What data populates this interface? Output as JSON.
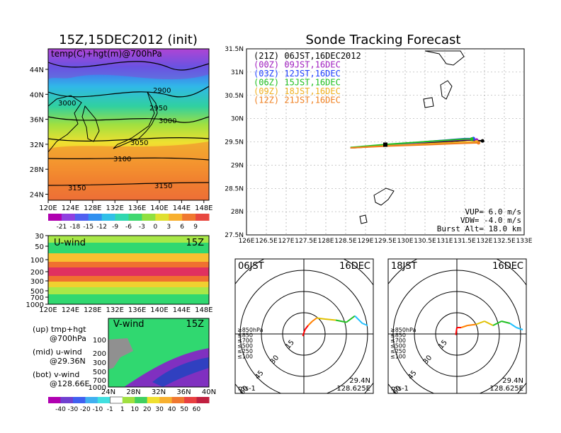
{
  "page_title": "Sonde Tracking Forecast",
  "left_title": "15Z,15DEC2012 (init)",
  "colors": {
    "fc_21z": "#000000",
    "fc_00z": "#a020c0",
    "fc_03z": "#2040ff",
    "fc_06z": "#20c020",
    "fc_09z": "#f0b020",
    "fc_12z": "#f08020"
  },
  "temp_map": {
    "label": "temp(C)+hgt(m)@700hPa",
    "contour_labels": [
      "2900",
      "2950",
      "3000",
      "3000",
      "3050",
      "3100",
      "3150",
      "3150"
    ],
    "lat_ticks": [
      "44N",
      "40N",
      "36N",
      "32N",
      "28N",
      "24N"
    ],
    "lon_ticks": [
      "120E",
      "124E",
      "128E",
      "132E",
      "136E",
      "140E",
      "144E",
      "148E"
    ],
    "colorbar_ticks": [
      "-21",
      "-18",
      "-15",
      "-12",
      "-9",
      "-6",
      "-3",
      "0",
      "3",
      "6",
      "9"
    ]
  },
  "uwind": {
    "label": "U-wind",
    "time": "15Z",
    "p_ticks": [
      "30",
      "50",
      "100",
      "200",
      "300",
      "500",
      "700",
      "1000"
    ],
    "lon_ticks": [
      "120E",
      "124E",
      "128E",
      "132E",
      "136E",
      "140E",
      "144E",
      "148E"
    ]
  },
  "vwind": {
    "label": "V-wind",
    "time": "15Z",
    "p_ticks": [
      "100",
      "200",
      "300",
      "500",
      "700",
      "1000"
    ],
    "lat_ticks": [
      "24N",
      "28N",
      "32N",
      "36N",
      "40N"
    ],
    "colorbar_ticks": [
      "-40",
      "-30",
      "-20",
      "-10",
      "-1",
      "1",
      "10",
      "20",
      "30",
      "40",
      "50",
      "60"
    ]
  },
  "legend_notes": [
    "(up) tmp+hgt",
    "@700hPa",
    "(mid) u-wind",
    "@29.36N",
    "(bot) v-wind",
    "@128.66E"
  ],
  "chart_data": [
    {
      "type": "line",
      "title": "Sonde Tracking Forecast",
      "xlim": [
        126,
        133
      ],
      "ylim": [
        27.5,
        31.5
      ],
      "x_ticks": [
        "126E",
        "126.5E",
        "127E",
        "127.5E",
        "128E",
        "128.5E",
        "129E",
        "129.5E",
        "130E",
        "130.5E",
        "131E",
        "131.5E",
        "132E",
        "132.5E",
        "133E"
      ],
      "y_ticks": [
        "27.5N",
        "28N",
        "28.5N",
        "29N",
        "29.5N",
        "30N",
        "30.5N",
        "31N",
        "31.5N"
      ],
      "series": [
        {
          "name": "(21Z) 06JST,16DEC2012",
          "color": "#000000",
          "points": [
            [
              128.62,
              29.37
            ],
            [
              129.6,
              29.42
            ],
            [
              130.6,
              29.48
            ],
            [
              131.6,
              29.54
            ],
            [
              131.95,
              29.52
            ]
          ]
        },
        {
          "name": "(00Z) 09JST,16DEC",
          "color": "#a020c0",
          "points": [
            [
              128.62,
              29.37
            ],
            [
              129.6,
              29.43
            ],
            [
              130.6,
              29.5
            ],
            [
              131.5,
              29.55
            ],
            [
              131.8,
              29.54
            ]
          ]
        },
        {
          "name": "(03Z) 12JST,16DEC",
          "color": "#2040ff",
          "points": [
            [
              128.62,
              29.37
            ],
            [
              129.6,
              29.44
            ],
            [
              130.6,
              29.51
            ],
            [
              131.5,
              29.57
            ],
            [
              131.72,
              29.57
            ]
          ]
        },
        {
          "name": "(06Z) 15JST,16DEC",
          "color": "#20c020",
          "points": [
            [
              128.62,
              29.38
            ],
            [
              129.6,
              29.45
            ],
            [
              130.6,
              29.51
            ],
            [
              131.5,
              29.56
            ],
            [
              131.68,
              29.56
            ]
          ]
        },
        {
          "name": "(09Z) 18JST,16DEC",
          "color": "#f0b020",
          "points": [
            [
              128.62,
              29.37
            ],
            [
              129.6,
              29.42
            ],
            [
              130.6,
              29.46
            ],
            [
              131.5,
              29.5
            ],
            [
              131.8,
              29.5
            ]
          ]
        },
        {
          "name": "(12Z) 21JST,16DEC",
          "color": "#f08020",
          "points": [
            [
              128.62,
              29.37
            ],
            [
              129.6,
              29.41
            ],
            [
              130.6,
              29.44
            ],
            [
              131.5,
              29.47
            ],
            [
              131.85,
              29.48
            ]
          ]
        }
      ],
      "annotations": [
        "VUP= 6.0 m/s",
        "VDW= -4.0 m/s",
        "Burst Alt= 18.0 km"
      ]
    },
    {
      "type": "line",
      "title": "06JST",
      "date": "16DEC",
      "location": [
        "29.4N",
        "128.625E"
      ],
      "units": "ms-1",
      "ring_labels": [
        "15",
        "30",
        "45",
        "60"
      ],
      "level_legend": [
        "≥850hPa",
        "≤850",
        "≤700",
        "≤500",
        "≤250",
        "≤100"
      ],
      "level_colors": [
        "#ff0000",
        "#ff8000",
        "#e0c000",
        "#20c020",
        "#20c0ff",
        "#2040ff"
      ],
      "hodograph": [
        [
          -1,
          -2
        ],
        [
          1,
          4
        ],
        [
          4,
          8
        ],
        [
          8,
          12
        ],
        [
          12,
          15
        ],
        [
          20,
          14
        ],
        [
          30,
          13
        ],
        [
          40,
          11
        ],
        [
          48,
          17
        ],
        [
          55,
          10
        ],
        [
          60,
          8
        ]
      ]
    },
    {
      "type": "line",
      "title": "18JST",
      "date": "16DEC",
      "location": [
        "29.4N",
        "128.625E"
      ],
      "units": "ms-1",
      "ring_labels": [
        "15",
        "30",
        "45",
        "60"
      ],
      "level_legend": [
        "≥850hPa",
        "≤850",
        "≤700",
        "≤500",
        "≤250",
        "≤100"
      ],
      "level_colors": [
        "#ff0000",
        "#ff8000",
        "#e0c000",
        "#20c020",
        "#20c0ff",
        "#2040ff"
      ],
      "hodograph": [
        [
          -1,
          -1
        ],
        [
          0,
          6
        ],
        [
          4,
          6
        ],
        [
          10,
          8
        ],
        [
          18,
          9
        ],
        [
          26,
          12
        ],
        [
          34,
          8
        ],
        [
          42,
          12
        ],
        [
          50,
          10
        ],
        [
          56,
          6
        ],
        [
          62,
          4
        ]
      ]
    }
  ]
}
